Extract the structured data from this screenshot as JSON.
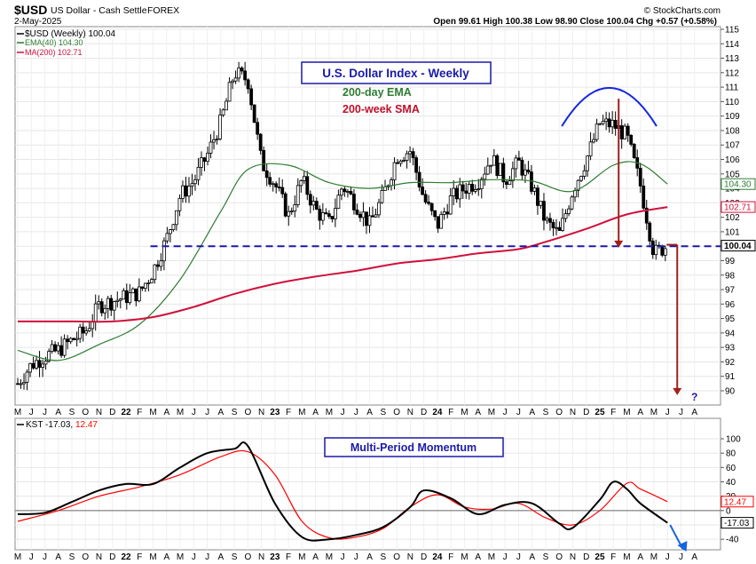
{
  "header": {
    "symbol": "$USD",
    "name": "US Dollar - Cash Settle",
    "exchange": "FOREX",
    "date": "2-May-2025",
    "credit": "© StockCharts.com",
    "ohlc_text": "Open 99.61  High 100.38  Low 98.90  Close 100.04  Chg +0.57 (+0.58%)"
  },
  "chart_data": [
    {
      "type": "line",
      "name": "price-panel",
      "series_label": "$USD (Weekly) 100.04",
      "ylim": [
        89.5,
        115.5
      ],
      "y_ticks": [
        90,
        91,
        92,
        93,
        94,
        95,
        96,
        97,
        98,
        99,
        100,
        101,
        102,
        103,
        104,
        105,
        106,
        107,
        108,
        109,
        110,
        111,
        112,
        113,
        114,
        115
      ],
      "x_ticks": [
        "M",
        "J",
        "J",
        "A",
        "S",
        "O",
        "N",
        "D",
        "22",
        "F",
        "M",
        "A",
        "M",
        "J",
        "J",
        "A",
        "S",
        "O",
        "N",
        "23",
        "F",
        "M",
        "A",
        "M",
        "J",
        "J",
        "A",
        "S",
        "O",
        "N",
        "D",
        "24",
        "F",
        "M",
        "A",
        "M",
        "J",
        "J",
        "A",
        "S",
        "O",
        "N",
        "D",
        "25",
        "F",
        "M",
        "A",
        "M",
        "J",
        "J",
        "A"
      ],
      "bold_ticks": [
        "22",
        "23",
        "24",
        "25"
      ],
      "x_start": "2021-05",
      "x_end": "2025-08",
      "price_series": {
        "name": "$USD",
        "x": [
          "2021-05",
          "2021-06",
          "2021-07",
          "2021-08",
          "2021-09",
          "2021-10",
          "2021-11",
          "2021-12",
          "2022-01",
          "2022-02",
          "2022-03",
          "2022-04",
          "2022-05",
          "2022-06",
          "2022-07",
          "2022-08",
          "2022-09",
          "2022-10",
          "2022-11",
          "2022-12",
          "2023-01",
          "2023-02",
          "2023-03",
          "2023-04",
          "2023-05",
          "2023-06",
          "2023-07",
          "2023-08",
          "2023-09",
          "2023-10",
          "2023-11",
          "2023-12",
          "2024-01",
          "2024-02",
          "2024-03",
          "2024-04",
          "2024-05",
          "2024-06",
          "2024-07",
          "2024-08",
          "2024-09",
          "2024-10",
          "2024-11",
          "2024-12",
          "2025-01",
          "2025-02",
          "2025-03",
          "2025-04",
          "2025-05"
        ],
        "values": [
          90.5,
          91.8,
          92.4,
          92.8,
          93.5,
          94.1,
          95.9,
          96.2,
          96.5,
          96.8,
          98.3,
          100.5,
          103.5,
          104.5,
          106.3,
          108.6,
          112.0,
          111.5,
          105.8,
          104.3,
          102.1,
          104.6,
          102.5,
          101.6,
          104.2,
          102.9,
          101.5,
          103.5,
          106.2,
          106.6,
          103.3,
          101.4,
          103.3,
          104.0,
          104.5,
          106.1,
          104.6,
          105.8,
          104.1,
          101.7,
          100.8,
          103.9,
          106.0,
          108.5,
          108.4,
          107.6,
          104.2,
          99.5,
          100.04
        ]
      },
      "series": [
        {
          "name": "EMA(40)",
          "label_value": "104.30",
          "color": "#2e7d32",
          "x": [
            "2021-05",
            "2021-08",
            "2021-11",
            "2022-02",
            "2022-05",
            "2022-08",
            "2022-10",
            "2023-01",
            "2023-04",
            "2023-07",
            "2023-10",
            "2024-01",
            "2024-04",
            "2024-07",
            "2024-10",
            "2025-01",
            "2025-03",
            "2025-05"
          ],
          "values": [
            92.8,
            92.1,
            93.2,
            94.6,
            97.7,
            102.4,
            105.3,
            105.6,
            104.4,
            104.0,
            104.4,
            104.4,
            104.6,
            104.5,
            103.8,
            105.6,
            105.7,
            104.3
          ]
        },
        {
          "name": "MA(200)",
          "label_value": "102.71",
          "color": "#d0103a",
          "x": [
            "2021-05",
            "2021-09",
            "2021-12",
            "2022-03",
            "2022-06",
            "2022-09",
            "2022-12",
            "2023-03",
            "2023-06",
            "2023-09",
            "2023-12",
            "2024-03",
            "2024-06",
            "2024-08",
            "2024-11",
            "2025-02",
            "2025-05"
          ],
          "values": [
            94.8,
            94.8,
            94.8,
            95.1,
            95.8,
            96.7,
            97.4,
            97.9,
            98.3,
            98.8,
            99.1,
            99.5,
            99.8,
            100.3,
            101.2,
            102.2,
            102.71
          ]
        }
      ],
      "reference_line": {
        "value": 100.0,
        "label": "100.04",
        "color": "#1a1aa8"
      },
      "axis_labels": [
        {
          "value": "104.30",
          "y": 104.3,
          "color": "#2e7d32"
        },
        {
          "value": "102.71",
          "y": 102.71,
          "color": "#d0103a"
        },
        {
          "value": "100.04",
          "y": 100.04,
          "color": "#000000"
        }
      ],
      "annotations": {
        "title": "U.S. Dollar Index - Weekly",
        "ema_label": "200-day EMA",
        "sma_label": "200-week SMA",
        "question": "?"
      }
    },
    {
      "type": "line",
      "name": "kst-panel",
      "series_label": "KST -17.03, 12.47",
      "ylim": [
        -50,
        115
      ],
      "y_ticks": [
        100,
        80,
        60,
        40,
        20,
        0,
        -20,
        -40
      ],
      "x_ticks": [
        "M",
        "J",
        "J",
        "A",
        "S",
        "O",
        "N",
        "D",
        "22",
        "F",
        "M",
        "A",
        "M",
        "J",
        "J",
        "A",
        "S",
        "O",
        "N",
        "23",
        "F",
        "M",
        "A",
        "M",
        "J",
        "J",
        "A",
        "S",
        "O",
        "N",
        "D",
        "24",
        "F",
        "M",
        "A",
        "M",
        "J",
        "J",
        "A",
        "S",
        "O",
        "N",
        "D",
        "25",
        "F",
        "M",
        "A",
        "M",
        "J",
        "J",
        "A"
      ],
      "series": [
        {
          "name": "KST",
          "label_value": "-17.03",
          "color": "#000000",
          "x": [
            "2021-05",
            "2021-07",
            "2021-09",
            "2021-11",
            "2022-01",
            "2022-03",
            "2022-05",
            "2022-07",
            "2022-09",
            "2022-10",
            "2022-12",
            "2023-02",
            "2023-04",
            "2023-06",
            "2023-08",
            "2023-10",
            "2023-11",
            "2024-01",
            "2024-03",
            "2024-05",
            "2024-07",
            "2024-09",
            "2024-10",
            "2024-12",
            "2025-01",
            "2025-02",
            "2025-03",
            "2025-05"
          ],
          "values": [
            -5,
            -3,
            12,
            28,
            37,
            37,
            60,
            80,
            86,
            90,
            10,
            -37,
            -40,
            -34,
            -23,
            5,
            28,
            17,
            -5,
            8,
            10,
            -18,
            -24,
            15,
            40,
            30,
            10,
            -17.03
          ]
        },
        {
          "name": "Signal",
          "label_value": "12.47",
          "color": "#ff0000",
          "x": [
            "2021-05",
            "2021-08",
            "2021-11",
            "2022-02",
            "2022-05",
            "2022-08",
            "2022-10",
            "2022-12",
            "2023-02",
            "2023-04",
            "2023-06",
            "2023-08",
            "2023-10",
            "2023-12",
            "2024-02",
            "2024-04",
            "2024-06",
            "2024-08",
            "2024-10",
            "2024-12",
            "2025-02",
            "2025-03",
            "2025-05"
          ],
          "values": [
            -15,
            0,
            20,
            33,
            50,
            75,
            82,
            50,
            -15,
            -38,
            -37,
            -25,
            5,
            22,
            5,
            2,
            10,
            -10,
            -20,
            0,
            38,
            30,
            12.47
          ]
        }
      ],
      "annotations": {
        "title": "Multi-Period Momentum"
      }
    }
  ]
}
